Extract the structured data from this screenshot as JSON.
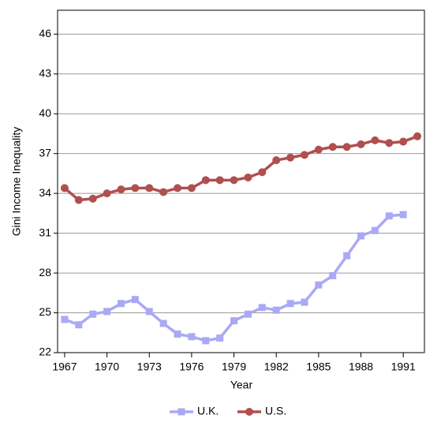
{
  "chart_data": {
    "type": "line",
    "x_label": "Year",
    "y_label": "Gini Income Inequality",
    "x": [
      1967,
      1968,
      1969,
      1970,
      1971,
      1972,
      1973,
      1974,
      1975,
      1976,
      1977,
      1978,
      1979,
      1980,
      1981,
      1982,
      1983,
      1984,
      1985,
      1986,
      1987,
      1988,
      1989,
      1990,
      1991,
      1992
    ],
    "series": [
      {
        "name": "U.K.",
        "color": "#a9a9f5",
        "marker": "square",
        "values": [
          24.5,
          24.1,
          24.9,
          25.1,
          25.7,
          26.0,
          25.1,
          24.2,
          23.4,
          23.2,
          22.9,
          23.1,
          24.4,
          24.9,
          25.4,
          25.2,
          25.7,
          25.8,
          27.1,
          27.8,
          29.3,
          30.8,
          31.2,
          32.3,
          32.4,
          null
        ]
      },
      {
        "name": "U.S.",
        "color": "#b04f4f",
        "marker": "circle",
        "values": [
          34.4,
          33.5,
          33.6,
          34.0,
          34.3,
          34.4,
          34.4,
          34.1,
          34.4,
          34.4,
          35.0,
          35.0,
          35.0,
          35.2,
          35.6,
          36.5,
          36.7,
          36.9,
          37.3,
          37.5,
          37.5,
          37.7,
          38.0,
          37.8,
          37.9,
          38.3
        ]
      }
    ],
    "xlim": [
      1966.5,
      1992.5
    ],
    "xticks": [
      1967,
      1970,
      1973,
      1976,
      1979,
      1982,
      1985,
      1988,
      1991
    ],
    "ylim": [
      22,
      47.8
    ],
    "yticks": [
      22,
      25,
      28,
      31,
      34,
      37,
      40,
      43,
      46
    ],
    "grid": true,
    "legend": "bottom"
  }
}
